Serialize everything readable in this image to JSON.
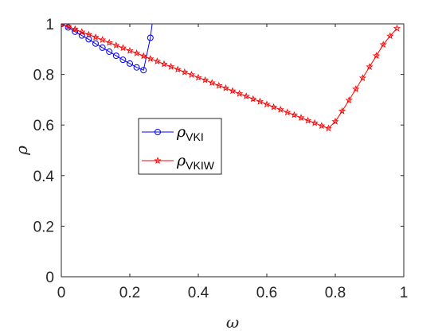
{
  "chart_data": {
    "type": "line",
    "xlabel": "ω",
    "ylabel": "ρ",
    "xlim": [
      0,
      1
    ],
    "ylim": [
      0,
      1
    ],
    "x_ticks": [
      "0",
      "0.2",
      "0.4",
      "0.6",
      "0.8",
      "1"
    ],
    "y_ticks": [
      "0",
      "0.2",
      "0.4",
      "0.6",
      "0.8",
      "1"
    ],
    "grid": false,
    "legend_position": "center-left",
    "series": [
      {
        "name_symbol": "ρ",
        "name_subscript": "VKI",
        "color": "#0000ff",
        "marker": "circle",
        "x": [
          0,
          0.02,
          0.04,
          0.06,
          0.08,
          0.1,
          0.12,
          0.14,
          0.16,
          0.18,
          0.2,
          0.22,
          0.24,
          0.26,
          0.27
        ],
        "y": [
          1.0,
          0.986,
          0.969,
          0.954,
          0.939,
          0.922,
          0.906,
          0.89,
          0.874,
          0.858,
          0.843,
          0.828,
          0.817,
          0.945,
          1.05
        ]
      },
      {
        "name_symbol": "ρ",
        "name_subscript": "VKIW",
        "color": "#ff0000",
        "marker": "star",
        "x": [
          0,
          0.02,
          0.04,
          0.06,
          0.08,
          0.1,
          0.12,
          0.14,
          0.16,
          0.18,
          0.2,
          0.22,
          0.24,
          0.26,
          0.28,
          0.3,
          0.32,
          0.34,
          0.36,
          0.38,
          0.4,
          0.42,
          0.44,
          0.46,
          0.48,
          0.5,
          0.52,
          0.54,
          0.56,
          0.58,
          0.6,
          0.62,
          0.64,
          0.66,
          0.68,
          0.7,
          0.72,
          0.74,
          0.76,
          0.78,
          0.8,
          0.82,
          0.84,
          0.86,
          0.88,
          0.9,
          0.92,
          0.94,
          0.96,
          0.98
        ],
        "y": [
          1.0,
          0.989,
          0.979,
          0.968,
          0.958,
          0.947,
          0.937,
          0.926,
          0.915,
          0.905,
          0.894,
          0.884,
          0.873,
          0.862,
          0.852,
          0.841,
          0.831,
          0.82,
          0.809,
          0.799,
          0.788,
          0.778,
          0.767,
          0.756,
          0.746,
          0.735,
          0.724,
          0.714,
          0.703,
          0.693,
          0.682,
          0.671,
          0.661,
          0.65,
          0.64,
          0.629,
          0.618,
          0.608,
          0.597,
          0.587,
          0.614,
          0.655,
          0.698,
          0.742,
          0.786,
          0.83,
          0.874,
          0.918,
          0.952,
          0.982
        ]
      }
    ]
  }
}
